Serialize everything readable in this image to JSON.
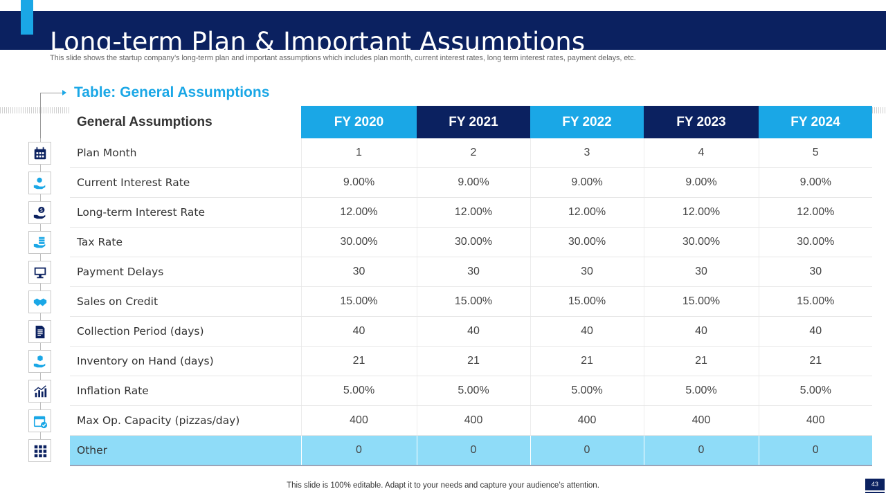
{
  "header": {
    "title": "Long-term Plan & Important Assumptions",
    "subtitle": "This slide shows the startup company’s long-term plan and important assumptions which includes plan month, current interest rates, long term interest rates, payment delays, etc."
  },
  "section": {
    "title": "Table: General Assumptions"
  },
  "table": {
    "label_header": "General Assumptions",
    "years": [
      "FY 2020",
      "FY 2021",
      "FY 2022",
      "FY 2023",
      "FY 2024"
    ],
    "rows": [
      {
        "label": "Plan Month",
        "icon": "calendar-icon",
        "values": [
          "1",
          "2",
          "3",
          "4",
          "5"
        ]
      },
      {
        "label": "Current Interest Rate",
        "icon": "hand-coins-icon",
        "values": [
          "9.00%",
          "9.00%",
          "9.00%",
          "9.00%",
          "9.00%"
        ]
      },
      {
        "label": "Long-term Interest Rate",
        "icon": "hand-dollar-icon",
        "values": [
          "12.00%",
          "12.00%",
          "12.00%",
          "12.00%",
          "12.00%"
        ]
      },
      {
        "label": "Tax Rate",
        "icon": "hand-stack-icon",
        "values": [
          "30.00%",
          "30.00%",
          "30.00%",
          "30.00%",
          "30.00%"
        ]
      },
      {
        "label": "Payment Delays",
        "icon": "monitor-icon",
        "values": [
          "30",
          "30",
          "30",
          "30",
          "30"
        ]
      },
      {
        "label": "Sales on Credit",
        "icon": "handshake-icon",
        "values": [
          "15.00%",
          "15.00%",
          "15.00%",
          "15.00%",
          "15.00%"
        ]
      },
      {
        "label": "Collection Period (days)",
        "icon": "document-icon",
        "values": [
          "40",
          "40",
          "40",
          "40",
          "40"
        ]
      },
      {
        "label": "Inventory on Hand (days)",
        "icon": "hand-box-icon",
        "values": [
          "21",
          "21",
          "21",
          "21",
          "21"
        ]
      },
      {
        "label": "Inflation Rate",
        "icon": "bar-chart-icon",
        "values": [
          "5.00%",
          "5.00%",
          "5.00%",
          "5.00%",
          "5.00%"
        ]
      },
      {
        "label": "Max Op. Capacity (pizzas/day)",
        "icon": "calendar-check-icon",
        "values": [
          "400",
          "400",
          "400",
          "400",
          "400"
        ]
      },
      {
        "label": "Other",
        "icon": "grid-icon",
        "values": [
          "0",
          "0",
          "0",
          "0",
          "0"
        ]
      }
    ]
  },
  "footer": {
    "note": "This slide is 100% editable. Adapt it to your needs and capture your audience’s attention.",
    "page_number": "43"
  },
  "colors": {
    "navy": "#0b2160",
    "accent": "#1aa7e6",
    "highlight_row": "#8fdcf8"
  }
}
